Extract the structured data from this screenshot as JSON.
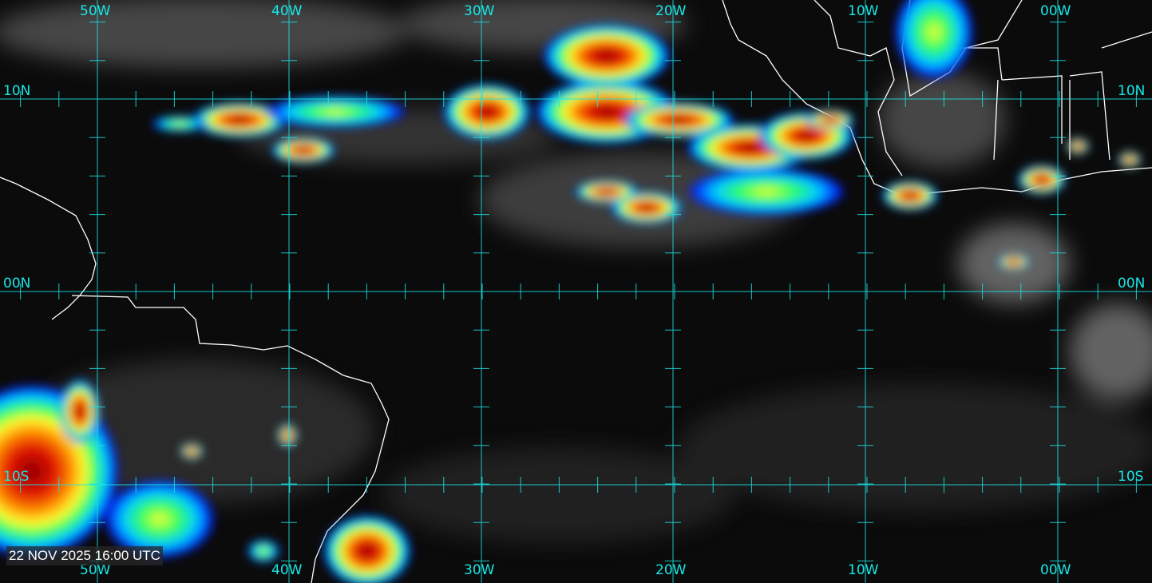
{
  "timestamp": "22 NOV 2025 16:00 UTC",
  "longitude_labels": [
    "50W",
    "40W",
    "30W",
    "20W",
    "10W",
    "00W"
  ],
  "latitude_labels": [
    "10N",
    "00N",
    "10S"
  ],
  "colors": {
    "grid": "#19e6e6",
    "coastline": "#ffffff",
    "background": "#0b0b0b",
    "cold_tops": [
      "#0000ff",
      "#00ffff",
      "#00ff00",
      "#ffff00",
      "#ff8000",
      "#ff0000",
      "#8b0000"
    ]
  }
}
